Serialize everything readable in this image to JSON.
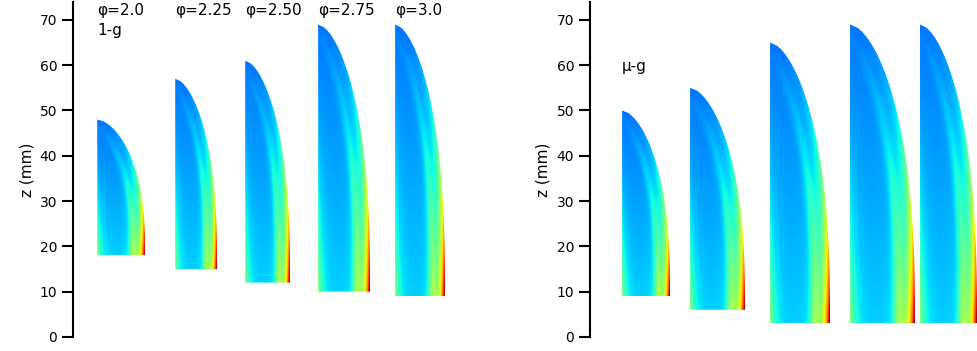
{
  "chart_data": [
    {
      "type": "image",
      "annotation": "1-g",
      "ylabel": "z (mm)",
      "categories": [
        "φ=2.0",
        "φ=2.25",
        "φ=2.50",
        "φ=2.75",
        "φ=3.0"
      ],
      "base_z": [
        18,
        15,
        12,
        10,
        9
      ],
      "tip_z": [
        48,
        57,
        61,
        69,
        69
      ],
      "ylim": [
        0,
        74
      ],
      "yticks": [
        0,
        10,
        20,
        30,
        40,
        50,
        60,
        70
      ],
      "tick_labels": "y"
    },
    {
      "type": "image",
      "annotation": "μ-g",
      "ylabel": "z (mm)",
      "categories": [
        null,
        null,
        null,
        null,
        null
      ],
      "base_z": [
        9,
        6,
        3,
        3,
        3
      ],
      "tip_z": [
        50,
        55,
        65,
        69,
        69
      ],
      "ylim": [
        0,
        74
      ],
      "yticks": [
        0,
        10,
        20,
        30,
        40,
        50,
        60,
        70
      ],
      "tick_labels": "y"
    }
  ]
}
